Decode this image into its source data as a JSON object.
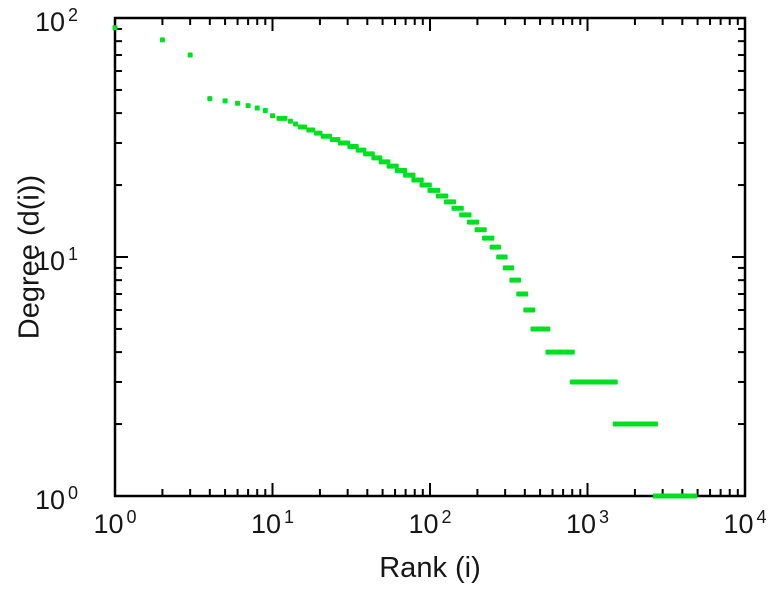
{
  "chart": {
    "background": "#ffffff",
    "frame_color": "#000000",
    "text_color": "#161616"
  },
  "chart_data": {
    "type": "scatter",
    "title": "",
    "xlabel": "Rank (i)",
    "ylabel": "Degree (d(i))",
    "x_scale": "log",
    "y_scale": "log",
    "xlim": [
      1,
      10000
    ],
    "ylim": [
      1,
      100
    ],
    "grid": false,
    "legend": false,
    "marker_color": "#00df20",
    "marker_shape": "square",
    "marker_size_px": 5,
    "tick_base": "10",
    "x_tick_exponents": [
      0,
      1,
      2,
      3,
      4
    ],
    "y_tick_exponents": [
      0,
      1,
      2
    ],
    "series": [
      {
        "name": "degree-vs-rank",
        "runs_format": "[degree, rank_start, rank_end]",
        "runs": [
          [
            91,
            1,
            1
          ],
          [
            81,
            2,
            2
          ],
          [
            70,
            3,
            3
          ],
          [
            46,
            4,
            4
          ],
          [
            45,
            5,
            5
          ],
          [
            44,
            6,
            6
          ],
          [
            43,
            7,
            7
          ],
          [
            42,
            8,
            8
          ],
          [
            41,
            9,
            9
          ],
          [
            39,
            10,
            10
          ],
          [
            38,
            11,
            12
          ],
          [
            37,
            13,
            13
          ],
          [
            36,
            14,
            14
          ],
          [
            35,
            15,
            16
          ],
          [
            34,
            17,
            18
          ],
          [
            33,
            19,
            20
          ],
          [
            32,
            21,
            23
          ],
          [
            31,
            24,
            26
          ],
          [
            30,
            27,
            30
          ],
          [
            29,
            31,
            34
          ],
          [
            28,
            35,
            38
          ],
          [
            27,
            39,
            43
          ],
          [
            26,
            44,
            48
          ],
          [
            25,
            49,
            54
          ],
          [
            24,
            55,
            61
          ],
          [
            23,
            62,
            69
          ],
          [
            22,
            70,
            78
          ],
          [
            21,
            79,
            88
          ],
          [
            20,
            89,
            99
          ],
          [
            19,
            100,
            112
          ],
          [
            18,
            113,
            126
          ],
          [
            17,
            127,
            141
          ],
          [
            16,
            142,
            158
          ],
          [
            15,
            159,
            177
          ],
          [
            14,
            178,
            198
          ],
          [
            13,
            199,
            221
          ],
          [
            12,
            222,
            247
          ],
          [
            11,
            248,
            272
          ],
          [
            10,
            273,
            300
          ],
          [
            9,
            301,
            330
          ],
          [
            8,
            331,
            365
          ],
          [
            7,
            366,
            405
          ],
          [
            6,
            406,
            450
          ],
          [
            5,
            451,
            560
          ],
          [
            4,
            561,
            800
          ],
          [
            3,
            801,
            1500
          ],
          [
            2,
            1501,
            2700
          ],
          [
            1,
            2701,
            4800
          ]
        ]
      }
    ]
  }
}
